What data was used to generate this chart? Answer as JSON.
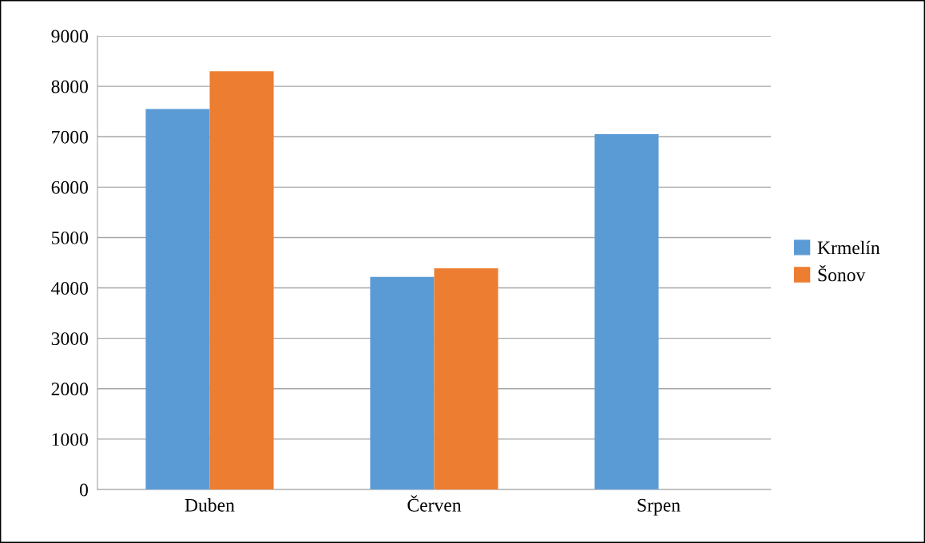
{
  "chart_data": {
    "type": "bar",
    "categories": [
      "Duben",
      "Červen",
      "Srpen"
    ],
    "series": [
      {
        "name": "Krmelín",
        "color": "#5b9bd5",
        "values": [
          7550,
          4220,
          7050
        ]
      },
      {
        "name": "Šonov",
        "color": "#ed7d31",
        "values": [
          8300,
          4390,
          null
        ]
      }
    ],
    "ylim": [
      0,
      9000
    ],
    "yticks": [
      0,
      1000,
      2000,
      3000,
      4000,
      5000,
      6000,
      7000,
      8000,
      9000
    ],
    "grid": "y",
    "legend": "right"
  }
}
